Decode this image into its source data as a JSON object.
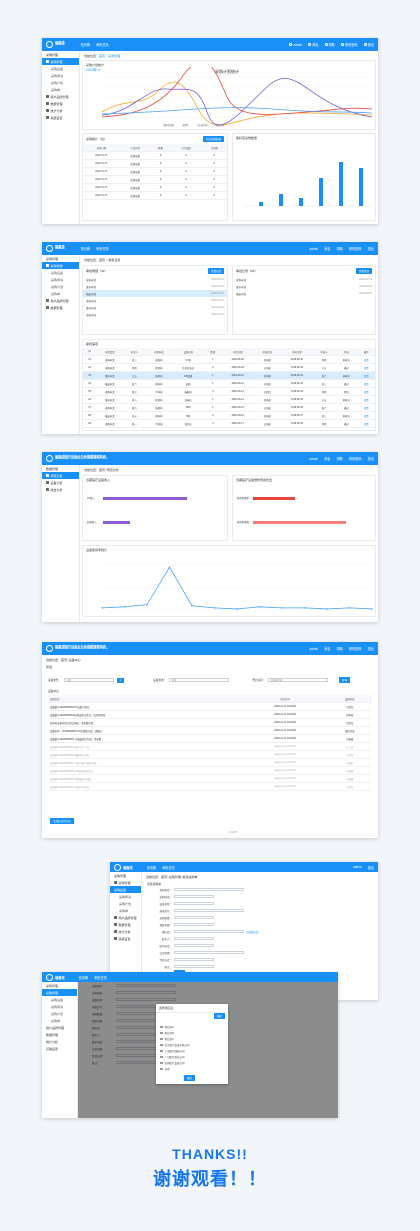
{
  "brand": {
    "name": "瑞鹿湾",
    "sub": "RUILUWAN"
  },
  "header_long": {
    "name": "瑞鹿湾国产设备全生命周期管理系统",
    "sub": "RUILUWAN EQUIPMENT LIFE CYCLE MANAGEMENT SYSTEM"
  },
  "nav": {
    "home": "首页概",
    "approve": "审批任务",
    "user": "admin",
    "msg": "消息",
    "help": "帮助",
    "edit_pwd": "修改密码",
    "logout": "退出"
  },
  "s1": {
    "sidebar": [
      "采购管理",
      "采购管理",
      "采购设备",
      "采购申请",
      "采购计划",
      "采购单",
      "用户品牌管理",
      "数据管理",
      "统计分析",
      "基础设置"
    ],
    "crumb_prefix": "当前位置：",
    "crumb_page": "首页 > 采购管理",
    "chart_title": "采购计划统计",
    "year": "2018年",
    "legend": [
      "采购申请数",
      "采购单",
      "已完成采购",
      "采购计划"
    ],
    "mini_title": "采购统计（台）",
    "mini_btn": "导出采购数量",
    "mini_headers": [
      "采购日期",
      "产品名称",
      "数量",
      "已完成数",
      "计划数"
    ],
    "bar_title": "各科室采购数量",
    "total": "合计"
  },
  "s2": {
    "crumb": "当前位置：首页 > 审批任务",
    "left_title": "审批明细（43）",
    "right_title": "审批记录（28）",
    "btn": "查看全部",
    "list_title": "审批事项",
    "headers": [
      "ID",
      "申请类型",
      "申请人",
      "申请科室",
      "设备名称",
      "数量",
      "申请日期",
      "审批状态",
      "审批日期",
      "审批人",
      "状态",
      "操作"
    ],
    "rows": [
      [
        "01",
        "采购申请",
        "张三",
        "放射科",
        "CT机",
        "1",
        "2018-08-08",
        "待审批",
        "2018-08-10",
        "李四",
        "审批中",
        "查看"
      ],
      [
        "02",
        "采购申请",
        "李四",
        "检验科",
        "生化分析仪",
        "2",
        "2018-08-09",
        "已审批",
        "2018-08-10",
        "王五",
        "通过",
        "查看"
      ],
      [
        "03",
        "维修申请",
        "王五",
        "放射科",
        "DR设备",
        "1",
        "2018-08-11",
        "待审批",
        "2018-08-12",
        "赵六",
        "审批中",
        "查看"
      ],
      [
        "04",
        "报废申请",
        "赵六",
        "超声科",
        "彩超",
        "1",
        "2018-08-12",
        "已审批",
        "2018-08-13",
        "张三",
        "通过",
        "查看"
      ],
      [
        "05",
        "采购申请",
        "钱七",
        "手术室",
        "麻醉机",
        "3",
        "2018-08-13",
        "已驳回",
        "2018-08-14",
        "李四",
        "驳回",
        "查看"
      ],
      [
        "06",
        "维修申请",
        "孙八",
        "检验科",
        "血球仪",
        "1",
        "2018-08-14",
        "待审批",
        "2018-08-15",
        "王五",
        "审批中",
        "查看"
      ],
      [
        "07",
        "采购申请",
        "周九",
        "放射科",
        "MRI",
        "1",
        "2018-08-15",
        "已审批",
        "2018-08-16",
        "赵六",
        "通过",
        "查看"
      ],
      [
        "08",
        "报废申请",
        "吴十",
        "超声科",
        "B超",
        "2",
        "2018-08-16",
        "待审批",
        "2018-08-17",
        "张三",
        "审批中",
        "查看"
      ],
      [
        "09",
        "采购申请",
        "郑一",
        "手术室",
        "监护仪",
        "4",
        "2018-08-17",
        "已审批",
        "2018-08-18",
        "李四",
        "通过",
        "查看"
      ]
    ]
  },
  "s3": {
    "crumb": "当前位置：首页>增值分析",
    "sidebar": [
      "数据管理",
      "增值分析",
      "设备分析",
      "效益分析"
    ],
    "p1_title": "近期医疗设备收入",
    "p2_title": "近期医疗设备维修费用支出",
    "p1_bars": [
      {
        "label": "CT收入",
        "value": 0.84
      },
      {
        "label": "彩超收入",
        "value": 0.27
      }
    ],
    "p2_bars": [
      {
        "label": "检验科费用",
        "value": 0.42
      },
      {
        "label": "放射科费用",
        "value": 0.93
      }
    ],
    "line_title": "设备使用率统计",
    "line_values": [
      2,
      3,
      5,
      40,
      4,
      2,
      1,
      3,
      2,
      2,
      1,
      2,
      1
    ]
  },
  "s4": {
    "crumb": "当前位置：首页>设备中心",
    "section": "筛选",
    "filter1": "设备类型：",
    "filter1_val": "全部",
    "filter2": "设备状态：",
    "filter2_val": "全部",
    "filter3": "登记时间：",
    "filter3_val": "请选择时间",
    "search": "查询",
    "list_title": "设备中心",
    "headers": [
      "设备信息",
      "登记时间",
      "设备状态"
    ],
    "rows": [
      [
        "设备编号20180628001CT设备已登记",
        "2018-11-11 10:36:00",
        "已登记"
      ],
      [
        "设备编号20180628002彩超设备已登记，请尽快审核",
        "2018-11-11 10:36:00",
        "待审核"
      ],
      [
        "放射科设备申请已提交审核，请查看详情",
        "2018-11-11 10:36:00",
        "已提交"
      ],
      [
        "设备名称：20180628003 CT机维修完成，请确认",
        "2018-11-11 10:36:00",
        "维修完成"
      ],
      [
        "设备编号20180628004 已报废登记完成，请查看",
        "2018-11-11 10:36:00",
        "已报废"
      ],
      [
        "设备编号20180628005 监护仪已入库",
        "2018-11-11 10:36:00",
        "已入库"
      ],
      [
        "设备编号20180628006 麻醉机已出库",
        "2018-11-11 10:36:00",
        "已出库"
      ],
      [
        "设备编号20180628007 生化分析仪巡检完成",
        "2018-11-11 10:36:00",
        "已巡检"
      ],
      [
        "设备编号20180628008 DR设备保养完成",
        "2018-11-11 10:36:00",
        "已保养"
      ],
      [
        "设备编号20180628009 B超设备已调拨",
        "2018-11-11 10:36:00",
        "已调拨"
      ],
      [
        "设备编号20180628010 血球仪已登记",
        "2018-11-11 10:36:00",
        "已登记"
      ]
    ],
    "export_btn": "全部标记为已读",
    "pager": "< 1 2 3 >"
  },
  "s5": {
    "crumb": "当前位置：首页>采购管理>新建采购单",
    "title": "新建采购单",
    "fields": [
      "采购类型：",
      "采购科室：",
      "设备名称：",
      "规格型号：",
      "采购数量：",
      "预算金额：",
      "供应商：",
      "联系人：",
      "联系电话：",
      "交货日期：",
      "付款方式：",
      "备注："
    ],
    "add": "添加供应商",
    "submit": "提交",
    "pay": "付款方式：",
    "pay_opts": [
      "全款",
      "分期",
      "其他"
    ]
  },
  "s6": {
    "dlg_title": "选择供应商",
    "dlg_btn": "确定",
    "dlg_items": [
      "供应商A",
      "供应商B",
      "供应商C",
      "北京医疗设备有限公司",
      "上海医疗器械公司",
      "广州医疗科技公司",
      "深圳医疗设备公司",
      "其他"
    ],
    "confirm": "确定"
  },
  "thanks_en": "THANKS!!",
  "thanks_cn": "谢谢观看！！"
}
